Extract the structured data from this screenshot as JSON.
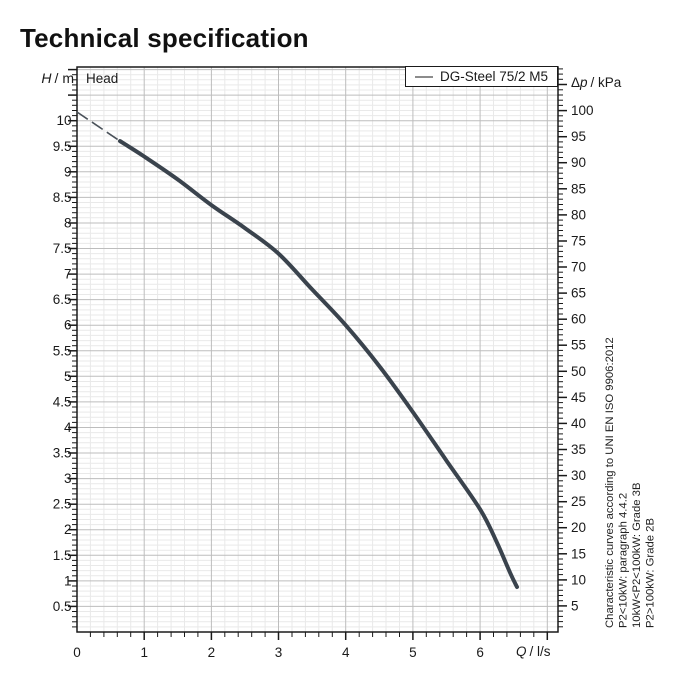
{
  "page_title": "Technical specification",
  "chart": {
    "head_label": "Head",
    "legend_label": "DG-Steel 75/2 M5",
    "left_axis": {
      "quantity": "H",
      "unit": "/ m"
    },
    "right_axis": {
      "prefix": "Δ",
      "quantity": "p",
      "unit": "/ kPa"
    },
    "x_axis": {
      "quantity": "Q",
      "unit": "/ l/s"
    }
  },
  "side_notes": [
    "Characteristic curves according to UNI EN ISO 9906:2012",
    "P2<10kW:  paragraph 4.4.2",
    "10kW<P2<100kW: Grade 3B",
    "P2>100kW: Grade 2B"
  ],
  "colors": {
    "curve": "#3a434d",
    "lead_in": "#4a525a",
    "grid_minor": "#e9e9e9",
    "grid_major": "#bdbdbd",
    "axis": "#1a1a1a",
    "legend_line": "#8c8c8c"
  },
  "chart_data": {
    "type": "line",
    "title": "Head",
    "xlabel": "Q / l/s",
    "ylabel_left": "H / m",
    "ylabel_right": "Δp / kPa",
    "xlim": [
      0,
      7.16
    ],
    "ylim_left_m": [
      0,
      11.05
    ],
    "right_axis_kpa_per_m": 9.80665,
    "x_minor_step": 0.2,
    "x_major_step": 1,
    "y_minor_step_m": 0.1,
    "y_major_step_m": 0.5,
    "right_minor_step_kpa": 1,
    "right_major_step_kpa": 5,
    "grid": true,
    "legend_position": "top-right",
    "series": [
      {
        "name": "DG-Steel 75/2 M5",
        "lead_in_dashed": [
          [
            0,
            10.17
          ],
          [
            0.64,
            9.6
          ]
        ],
        "points": [
          [
            0.64,
            9.6
          ],
          [
            1,
            9.3
          ],
          [
            1.5,
            8.85
          ],
          [
            2,
            8.35
          ],
          [
            2.5,
            7.9
          ],
          [
            3,
            7.4
          ],
          [
            3.5,
            6.7
          ],
          [
            4,
            6.0
          ],
          [
            4.5,
            5.2
          ],
          [
            5,
            4.3
          ],
          [
            5.5,
            3.35
          ],
          [
            6,
            2.4
          ],
          [
            6.25,
            1.75
          ],
          [
            6.45,
            1.15
          ],
          [
            6.55,
            0.88
          ]
        ]
      }
    ],
    "x_ticks": [
      [
        0,
        "0"
      ],
      [
        1,
        "1"
      ],
      [
        2,
        "2"
      ],
      [
        3,
        "3"
      ],
      [
        4,
        "4"
      ],
      [
        5,
        "5"
      ],
      [
        6,
        "6"
      ]
    ],
    "left_ticks": [
      [
        0.5,
        "0.5"
      ],
      [
        1,
        "1"
      ],
      [
        1.5,
        "1.5"
      ],
      [
        2,
        "2"
      ],
      [
        2.5,
        "2.5"
      ],
      [
        3,
        "3"
      ],
      [
        3.5,
        "3.5"
      ],
      [
        4,
        "4"
      ],
      [
        4.5,
        "4.5"
      ],
      [
        5,
        "5"
      ],
      [
        5.5,
        "5.5"
      ],
      [
        6,
        "6"
      ],
      [
        6.5,
        "6.5"
      ],
      [
        7,
        "7"
      ],
      [
        7.5,
        "7.5"
      ],
      [
        8,
        "8"
      ],
      [
        8.5,
        "8.5"
      ],
      [
        9,
        "9"
      ],
      [
        9.5,
        "9.5"
      ],
      [
        10,
        "10"
      ]
    ],
    "right_ticks": [
      [
        5,
        "5"
      ],
      [
        10,
        "10"
      ],
      [
        15,
        "15"
      ],
      [
        20,
        "20"
      ],
      [
        25,
        "25"
      ],
      [
        30,
        "30"
      ],
      [
        35,
        "35"
      ],
      [
        40,
        "40"
      ],
      [
        45,
        "45"
      ],
      [
        50,
        "50"
      ],
      [
        55,
        "55"
      ],
      [
        60,
        "60"
      ],
      [
        65,
        "65"
      ],
      [
        70,
        "70"
      ],
      [
        75,
        "75"
      ],
      [
        80,
        "80"
      ],
      [
        85,
        "85"
      ],
      [
        90,
        "90"
      ],
      [
        95,
        "95"
      ],
      [
        100,
        "100"
      ]
    ]
  }
}
